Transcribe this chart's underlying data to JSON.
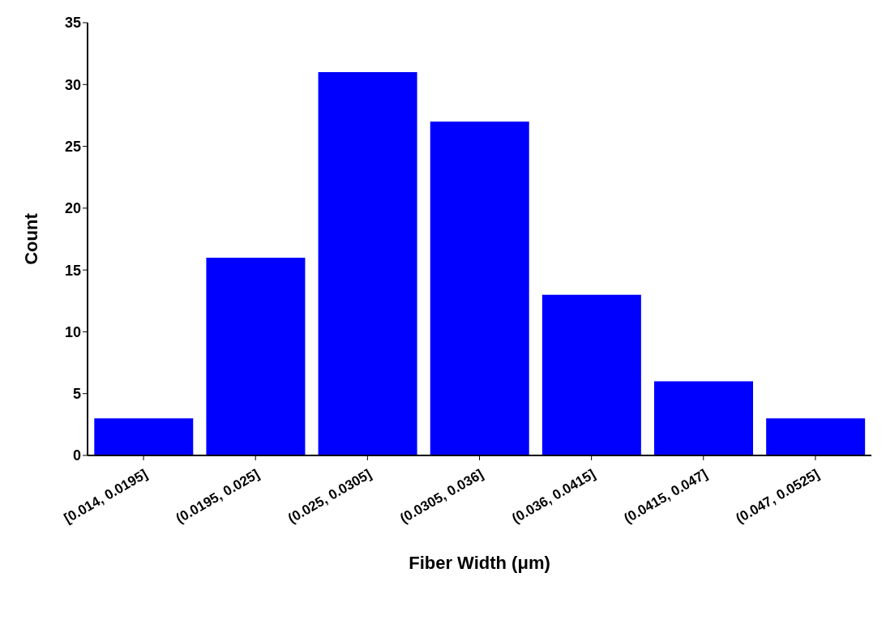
{
  "chart_data": {
    "type": "bar",
    "xlabel": "Fiber Width (μm)",
    "ylabel": "Count",
    "categories": [
      "[0.014, 0.0195]",
      "(0.0195, 0.025]",
      "(0.025, 0.0305]",
      "(0.0305, 0.036]",
      "(0.036, 0.0415]",
      "(0.0415, 0.047]",
      "(0.047, 0.0525]"
    ],
    "values": [
      3,
      16,
      31,
      27,
      13,
      6,
      3
    ],
    "color": "#0000ff",
    "ylim": [
      0,
      35
    ],
    "yticks": [
      0,
      5,
      10,
      15,
      20,
      25,
      30,
      35
    ],
    "grid": false,
    "legend": false
  }
}
